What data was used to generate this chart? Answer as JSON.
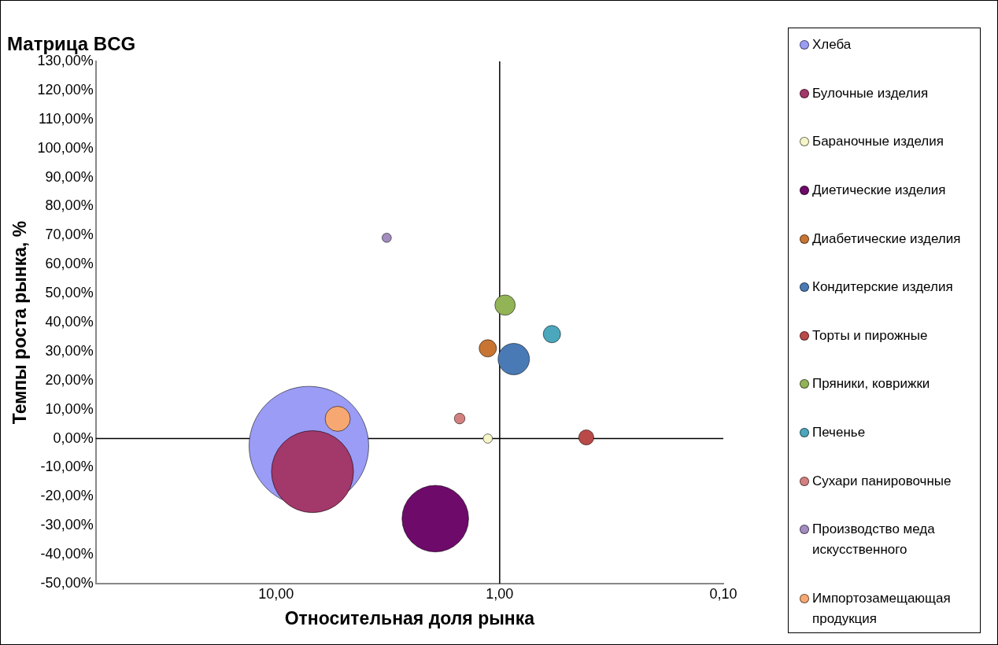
{
  "chart_data": {
    "type": "bubble",
    "title": "Матрица BCG",
    "xlabel": "Относительная доля рынка",
    "ylabel": "Темпы роста рынка, %",
    "log": "x",
    "legend": "right",
    "xlim": [
      64,
      0.1
    ],
    "xticks": [
      {
        "value": 10,
        "label": "10,00"
      },
      {
        "value": 1,
        "label": "1,00"
      },
      {
        "value": 0.1,
        "label": "0,10"
      }
    ],
    "ylim": [
      -50,
      130
    ],
    "yticks": [
      {
        "value": -50,
        "label": "-50,00%"
      },
      {
        "value": -40,
        "label": "-40,00%"
      },
      {
        "value": -30,
        "label": "-30,00%"
      },
      {
        "value": -20,
        "label": "-20,00%"
      },
      {
        "value": -10,
        "label": "-10,00%"
      },
      {
        "value": 0,
        "label": "0,00%"
      },
      {
        "value": 10,
        "label": "10,00%"
      },
      {
        "value": 20,
        "label": "20,00%"
      },
      {
        "value": 30,
        "label": "30,00%"
      },
      {
        "value": 40,
        "label": "40,00%"
      },
      {
        "value": 50,
        "label": "50,00%"
      },
      {
        "value": 60,
        "label": "60,00%"
      },
      {
        "value": 70,
        "label": "70,00%"
      },
      {
        "value": 80,
        "label": "80,00%"
      },
      {
        "value": 90,
        "label": "90,00%"
      },
      {
        "value": 100,
        "label": "100,00%"
      },
      {
        "value": 110,
        "label": "110,00%"
      },
      {
        "value": 120,
        "label": "120,00%"
      },
      {
        "value": 130,
        "label": "130,00%"
      }
    ],
    "grid": false,
    "ref_lines": [
      {
        "axis": "x",
        "value": 1,
        "color": "#000000"
      },
      {
        "axis": "y",
        "value": 0,
        "color": "#000000"
      }
    ],
    "series": [
      {
        "name": "Хлеба",
        "color": "#9a9cf5",
        "x": [
          7.13
        ],
        "values": [
          -2.6
        ],
        "sizes": [
          1
        ]
      },
      {
        "name": "Булочные изделия",
        "color": "#a3386a",
        "x": [
          6.87
        ],
        "values": [
          -11.4
        ],
        "sizes": [
          0.47
        ]
      },
      {
        "name": "Бараночные изделия",
        "color": "#f5f5c8",
        "x": [
          1.13
        ],
        "values": [
          0
        ],
        "sizes": [
          0.006
        ]
      },
      {
        "name": "Диетические изделия",
        "color": "#6e0a6a",
        "x": [
          1.94
        ],
        "values": [
          -27.6
        ],
        "sizes": [
          0.31
        ]
      },
      {
        "name": "Диабетические изделия",
        "color": "#c87533",
        "x": [
          1.13
        ],
        "values": [
          31.1
        ],
        "sizes": [
          0.021
        ]
      },
      {
        "name": "Кондитерские изделия",
        "color": "#4a7ab5",
        "x": [
          0.865
        ],
        "values": [
          27.4
        ],
        "sizes": [
          0.069
        ]
      },
      {
        "name": "Торты и пирожные",
        "color": "#b94a48",
        "x": [
          0.41
        ],
        "values": [
          0.4
        ],
        "sizes": [
          0.016
        ]
      },
      {
        "name": "Пряники, коврижки",
        "color": "#93b357",
        "x": [
          0.946
        ],
        "values": [
          46
        ],
        "sizes": [
          0.029
        ]
      },
      {
        "name": "Печенье",
        "color": "#4ba7bc",
        "x": [
          0.584
        ],
        "values": [
          36
        ],
        "sizes": [
          0.021
        ]
      },
      {
        "name": "Сухари панировочные",
        "color": "#d48080",
        "x": [
          1.51
        ],
        "values": [
          6.9
        ],
        "sizes": [
          0.008
        ]
      },
      {
        "name": "Производство меда искусственного",
        "color": "#a38cc0",
        "x": [
          3.2
        ],
        "values": [
          69.2
        ],
        "sizes": [
          0.006
        ]
      },
      {
        "name": "Импортозамещающая продукция",
        "color": "#f7a872",
        "x": [
          5.3
        ],
        "values": [
          6.8
        ],
        "sizes": [
          0.044
        ]
      }
    ]
  }
}
